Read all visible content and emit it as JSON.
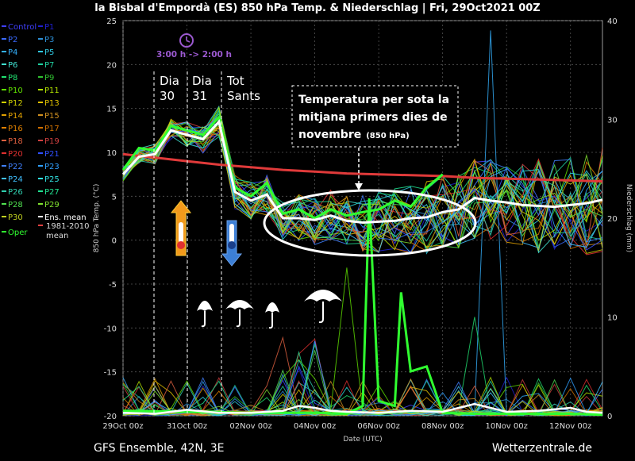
{
  "chart_data": {
    "type": "line",
    "title": "la Bisbal d'Empordà  (ES)  850 hPa Temp. & Niederschlag | Fri, 29Oct2021 00Z",
    "footer_left": "GFS Ensemble, 42N, 3E",
    "footer_right": "Wetterzentrale.de",
    "xlabel": "Date (UTC)",
    "ylabel_left": "850 hPa Temp. (°C)",
    "ylabel_right": "Niederschlag (mm)",
    "ylim_left": [
      -20,
      25
    ],
    "ylim_right": [
      0,
      40
    ],
    "y_ticks_left": [
      "25",
      "20",
      "15",
      "10",
      "5",
      "0",
      "-5",
      "-10",
      "-15",
      "-20"
    ],
    "y_ticks_right": [
      "40",
      "30",
      "20",
      "10",
      "0"
    ],
    "x_ticks": [
      "29Oct 00z",
      "31Oct 00z",
      "02Nov 00z",
      "04Nov 00z",
      "06Nov 00z",
      "08Nov 00z",
      "10Nov 00z",
      "12Nov 00z"
    ],
    "x_range_days": [
      0,
      15
    ],
    "grid": true,
    "legend_placement": "left",
    "legend": [
      {
        "label": "Control",
        "color": "#4040ff"
      },
      {
        "label": "P1",
        "color": "#2020d0"
      },
      {
        "label": "P2",
        "color": "#3a6aff"
      },
      {
        "label": "P3",
        "color": "#2d8fd6"
      },
      {
        "label": "P4",
        "color": "#35b2ff"
      },
      {
        "label": "P5",
        "color": "#30c8e0"
      },
      {
        "label": "P6",
        "color": "#40e0d0"
      },
      {
        "label": "P7",
        "color": "#20d0a0"
      },
      {
        "label": "P8",
        "color": "#20e070"
      },
      {
        "label": "P9",
        "color": "#30c030"
      },
      {
        "label": "P10",
        "color": "#60e000"
      },
      {
        "label": "P11",
        "color": "#b0e000"
      },
      {
        "label": "P12",
        "color": "#d0d000"
      },
      {
        "label": "P13",
        "color": "#e0c000"
      },
      {
        "label": "P14",
        "color": "#e0a000"
      },
      {
        "label": "P15",
        "color": "#d09020"
      },
      {
        "label": "P16",
        "color": "#e08000"
      },
      {
        "label": "P17",
        "color": "#d07000"
      },
      {
        "label": "P18",
        "color": "#e06040"
      },
      {
        "label": "P19",
        "color": "#d04040"
      },
      {
        "label": "P20",
        "color": "#e03030"
      },
      {
        "label": "P21",
        "color": "#3050ff"
      },
      {
        "label": "P22",
        "color": "#4080ff"
      },
      {
        "label": "P23",
        "color": "#30a0ff"
      },
      {
        "label": "P24",
        "color": "#40c0ff"
      },
      {
        "label": "P25",
        "color": "#30e0e0"
      },
      {
        "label": "P26",
        "color": "#30d0b0"
      },
      {
        "label": "P27",
        "color": "#20e090"
      },
      {
        "label": "P28",
        "color": "#50e050"
      },
      {
        "label": "P29",
        "color": "#80e030"
      },
      {
        "label": "P30",
        "color": "#c0d020"
      },
      {
        "label": "Ens. mean",
        "color": "#ffffff"
      },
      {
        "label": "1981-2010\nmean",
        "color": "#e04040"
      },
      {
        "label": "Oper",
        "color": "#30ff30"
      }
    ],
    "ens_mean": {
      "x": [
        0,
        0.5,
        1,
        1.5,
        2,
        2.5,
        3,
        3.5,
        4,
        4.5,
        5,
        5.5,
        6,
        6.5,
        7,
        7.5,
        8,
        8.5,
        9,
        9.5,
        10,
        10.5,
        11,
        11.5,
        12,
        12.5,
        13,
        13.5,
        14,
        14.5,
        15
      ],
      "y": [
        7.5,
        9.5,
        9.8,
        12.5,
        12.0,
        11.5,
        13.5,
        5.5,
        4.5,
        5.2,
        2.5,
        2.5,
        2.3,
        2.8,
        2.2,
        2.0,
        2.1,
        2.2,
        2.5,
        2.6,
        3.2,
        3.5,
        4.8,
        4.5,
        4.3,
        4.0,
        3.9,
        3.8,
        4.0,
        4.2,
        4.6
      ]
    },
    "climate_mean": {
      "x": [
        0,
        1,
        2,
        3,
        4,
        5,
        6,
        7,
        8,
        9,
        10,
        11,
        12,
        13,
        14,
        15
      ],
      "y": [
        9.8,
        9.4,
        9.0,
        8.6,
        8.3,
        8.0,
        7.8,
        7.6,
        7.5,
        7.4,
        7.3,
        7.1,
        7.0,
        6.9,
        6.8,
        6.7
      ]
    },
    "oper": {
      "x": [
        0,
        0.5,
        1,
        1.5,
        2,
        2.5,
        3,
        3.5,
        4,
        4.5,
        5,
        5.5,
        6,
        6.5,
        7,
        7.5,
        8,
        8.5,
        9,
        9.5,
        10
      ],
      "y": [
        8.0,
        10.5,
        10.2,
        13.0,
        12.5,
        12.0,
        14.0,
        6.0,
        5.0,
        6.5,
        3.0,
        3.5,
        2.5,
        3.5,
        2.8,
        3.2,
        3.5,
        4.5,
        3.8,
        6.0,
        7.5
      ]
    },
    "oper_precip": {
      "x": [
        0,
        2,
        4,
        6,
        7,
        7.5,
        7.7,
        8,
        8.5,
        8.7,
        9,
        9.5,
        10,
        11,
        12,
        13,
        14,
        15
      ],
      "y": [
        0.5,
        0.4,
        0.3,
        0.3,
        0.2,
        1.0,
        22.0,
        1.5,
        1.0,
        12.5,
        4.5,
        5.0,
        0.3,
        0.2,
        0.2,
        0.2,
        0.2,
        0.1
      ]
    },
    "ens_mean_precip": {
      "x": [
        0,
        1,
        2,
        3,
        4,
        5,
        5.5,
        6,
        6.5,
        7,
        8,
        9,
        10,
        11,
        12,
        13,
        14,
        14.5,
        15
      ],
      "y": [
        0.3,
        0.2,
        0.6,
        0.3,
        0.3,
        0.5,
        1.0,
        0.8,
        0.5,
        0.4,
        0.3,
        0.5,
        0.4,
        1.2,
        0.4,
        0.5,
        0.8,
        0.4,
        0.3
      ]
    },
    "annotations": [
      {
        "id": "time-change",
        "text": "3:00 h -> 2:00 h"
      },
      {
        "id": "dia30",
        "lines": [
          "Dia",
          "30"
        ]
      },
      {
        "id": "dia31",
        "lines": [
          "Dia",
          "31"
        ]
      },
      {
        "id": "tot-sants",
        "lines": [
          "Tot",
          "Sants"
        ]
      },
      {
        "id": "callout",
        "lines": [
          "Temperatura per sota la",
          "mitjana primers dies de"
        ],
        "last": "novembre",
        "small": "(850 hPa)"
      }
    ],
    "markers": [
      {
        "label": "warm-arrow",
        "color": "#f0a020"
      },
      {
        "label": "cold-arrow",
        "color": "#4090e0"
      },
      {
        "label": "clock",
        "color": "#9b59d0"
      }
    ]
  }
}
